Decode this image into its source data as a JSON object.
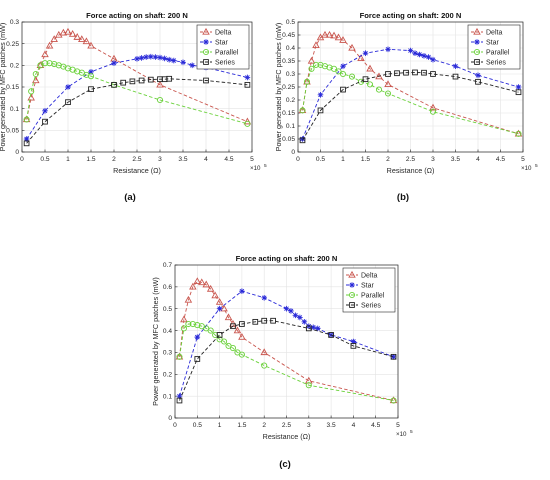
{
  "chart_data": [
    {
      "type": "line",
      "panel": "(a)",
      "title": "Force acting on shaft: 200 N",
      "xlabel": "Resistance (Ω)",
      "ylabel": "Power generated by MFC patches (mW)",
      "x_exponent": "×10",
      "x_exponent_power": "5",
      "xlim": [
        0,
        5
      ],
      "ylim": [
        0,
        0.3
      ],
      "xticks": [
        "0",
        "0.5",
        "1",
        "1.5",
        "2",
        "2.5",
        "3",
        "3.5",
        "4",
        "4.5",
        "5"
      ],
      "yticks": [
        "0",
        "0.05",
        "0.1",
        "0.15",
        "0.2",
        "0.25",
        "0.3"
      ],
      "grid": true,
      "legend_position": "top-right",
      "series": [
        {
          "name": "Delta",
          "x": [
            0.1,
            0.2,
            0.3,
            0.4,
            0.5,
            0.6,
            0.7,
            0.8,
            0.9,
            1.0,
            1.1,
            1.2,
            1.3,
            1.4,
            1.5,
            2.0,
            3.0,
            4.9
          ],
          "values": [
            0.075,
            0.125,
            0.165,
            0.2,
            0.225,
            0.245,
            0.26,
            0.27,
            0.275,
            0.277,
            0.272,
            0.265,
            0.26,
            0.255,
            0.245,
            0.215,
            0.155,
            0.07
          ]
        },
        {
          "name": "Star",
          "x": [
            0.1,
            0.5,
            1.0,
            1.5,
            2.0,
            2.5,
            2.6,
            2.7,
            2.8,
            2.9,
            3.0,
            3.1,
            3.2,
            3.3,
            3.5,
            3.7,
            4.0,
            4.9
          ],
          "values": [
            0.03,
            0.095,
            0.15,
            0.185,
            0.205,
            0.215,
            0.217,
            0.219,
            0.22,
            0.219,
            0.218,
            0.216,
            0.213,
            0.211,
            0.207,
            0.2,
            0.195,
            0.172
          ]
        },
        {
          "name": "Parallel",
          "x": [
            0.1,
            0.2,
            0.3,
            0.4,
            0.5,
            0.6,
            0.7,
            0.8,
            0.9,
            1.0,
            1.1,
            1.2,
            1.3,
            1.4,
            1.5,
            2.0,
            3.0,
            4.9
          ],
          "values": [
            0.075,
            0.14,
            0.18,
            0.2,
            0.205,
            0.205,
            0.203,
            0.2,
            0.197,
            0.193,
            0.19,
            0.186,
            0.183,
            0.178,
            0.175,
            0.155,
            0.12,
            0.065
          ]
        },
        {
          "name": "Series",
          "x": [
            0.1,
            0.5,
            1.0,
            1.5,
            2.0,
            2.2,
            2.4,
            2.6,
            2.8,
            3.0,
            3.1,
            3.2,
            4.0,
            4.9
          ],
          "values": [
            0.02,
            0.07,
            0.115,
            0.145,
            0.155,
            0.16,
            0.163,
            0.165,
            0.167,
            0.168,
            0.168,
            0.169,
            0.165,
            0.155
          ]
        }
      ],
      "colors": {
        "Delta": "#c9564e",
        "Star": "#2a2ad8",
        "Parallel": "#6ad13a",
        "Series": "#222222"
      }
    },
    {
      "type": "line",
      "panel": "(b)",
      "title": "Force acting on shaft: 200 N",
      "xlabel": "Resistance (Ω)",
      "ylabel": "Power generated by MFC patches (mW)",
      "x_exponent": "×10",
      "x_exponent_power": "5",
      "xlim": [
        0,
        5
      ],
      "ylim": [
        0,
        0.5
      ],
      "xticks": [
        "0",
        "0.5",
        "1",
        "1.5",
        "2",
        "2.5",
        "3",
        "3.5",
        "4",
        "4.5",
        "5"
      ],
      "yticks": [
        "0",
        "0.05",
        "0.1",
        "0.15",
        "0.2",
        "0.25",
        "0.3",
        "0.35",
        "0.4",
        "0.45",
        "0.5"
      ],
      "grid": true,
      "legend_position": "top-right",
      "series": [
        {
          "name": "Delta",
          "x": [
            0.1,
            0.2,
            0.3,
            0.4,
            0.5,
            0.6,
            0.7,
            0.8,
            0.9,
            1.0,
            1.2,
            1.4,
            1.6,
            1.8,
            2.0,
            3.0,
            4.9
          ],
          "values": [
            0.16,
            0.27,
            0.35,
            0.41,
            0.44,
            0.45,
            0.45,
            0.447,
            0.44,
            0.43,
            0.4,
            0.36,
            0.32,
            0.29,
            0.26,
            0.17,
            0.07
          ]
        },
        {
          "name": "Star",
          "x": [
            0.1,
            0.5,
            1.0,
            1.5,
            2.0,
            2.5,
            2.6,
            2.7,
            2.8,
            2.9,
            3.0,
            3.5,
            4.0,
            4.9
          ],
          "values": [
            0.05,
            0.22,
            0.33,
            0.38,
            0.395,
            0.39,
            0.38,
            0.375,
            0.37,
            0.365,
            0.355,
            0.33,
            0.295,
            0.25
          ]
        },
        {
          "name": "Parallel",
          "x": [
            0.1,
            0.2,
            0.3,
            0.4,
            0.5,
            0.6,
            0.7,
            0.8,
            0.9,
            1.0,
            1.2,
            1.4,
            1.6,
            1.8,
            2.0,
            3.0,
            4.9
          ],
          "values": [
            0.16,
            0.27,
            0.32,
            0.335,
            0.335,
            0.33,
            0.325,
            0.32,
            0.31,
            0.3,
            0.29,
            0.27,
            0.26,
            0.24,
            0.225,
            0.155,
            0.07
          ]
        },
        {
          "name": "Series",
          "x": [
            0.1,
            0.5,
            1.0,
            1.5,
            2.0,
            2.2,
            2.4,
            2.6,
            2.8,
            3.0,
            3.5,
            4.0,
            4.9
          ],
          "values": [
            0.045,
            0.16,
            0.24,
            0.28,
            0.3,
            0.303,
            0.305,
            0.306,
            0.305,
            0.3,
            0.29,
            0.27,
            0.23
          ]
        }
      ],
      "colors": {
        "Delta": "#c9564e",
        "Star": "#2a2ad8",
        "Parallel": "#6ad13a",
        "Series": "#222222"
      }
    },
    {
      "type": "line",
      "panel": "(c)",
      "title": "Force acting on shaft: 200 N",
      "xlabel": "Resistance (Ω)",
      "ylabel": "Power generated by MFC patches (mW)",
      "x_exponent": "×10",
      "x_exponent_power": "5",
      "xlim": [
        0,
        5
      ],
      "ylim": [
        0,
        0.7
      ],
      "xticks": [
        "0",
        "0.5",
        "1",
        "1.5",
        "2",
        "2.5",
        "3",
        "3.5",
        "4",
        "4.5",
        "5"
      ],
      "yticks": [
        "0",
        "0.1",
        "0.2",
        "0.3",
        "0.4",
        "0.5",
        "0.6",
        "0.7"
      ],
      "grid": true,
      "legend_position": "top-right",
      "series": [
        {
          "name": "Delta",
          "x": [
            0.1,
            0.2,
            0.3,
            0.4,
            0.5,
            0.6,
            0.7,
            0.8,
            0.9,
            1.0,
            1.1,
            1.2,
            1.3,
            1.4,
            1.5,
            2.0,
            3.0,
            4.9
          ],
          "values": [
            0.28,
            0.45,
            0.54,
            0.6,
            0.625,
            0.62,
            0.61,
            0.59,
            0.56,
            0.53,
            0.5,
            0.46,
            0.43,
            0.4,
            0.37,
            0.3,
            0.17,
            0.08
          ]
        },
        {
          "name": "Star",
          "x": [
            0.1,
            0.5,
            1.0,
            1.5,
            2.0,
            2.5,
            2.6,
            2.7,
            2.8,
            2.9,
            3.0,
            3.1,
            3.2,
            3.5,
            4.0,
            4.9
          ],
          "values": [
            0.1,
            0.37,
            0.5,
            0.58,
            0.55,
            0.5,
            0.49,
            0.47,
            0.46,
            0.44,
            0.42,
            0.415,
            0.41,
            0.38,
            0.35,
            0.28
          ]
        },
        {
          "name": "Parallel",
          "x": [
            0.1,
            0.2,
            0.3,
            0.4,
            0.5,
            0.6,
            0.7,
            0.8,
            0.9,
            1.0,
            1.1,
            1.2,
            1.3,
            1.4,
            1.5,
            2.0,
            3.0,
            4.9
          ],
          "values": [
            0.28,
            0.41,
            0.43,
            0.43,
            0.425,
            0.42,
            0.41,
            0.4,
            0.38,
            0.36,
            0.35,
            0.33,
            0.32,
            0.3,
            0.29,
            0.24,
            0.15,
            0.08
          ]
        },
        {
          "name": "Series",
          "x": [
            0.1,
            0.5,
            1.0,
            1.3,
            1.5,
            1.8,
            2.0,
            2.2,
            3.0,
            3.5,
            4.0,
            4.9
          ],
          "values": [
            0.08,
            0.27,
            0.38,
            0.42,
            0.43,
            0.44,
            0.445,
            0.445,
            0.41,
            0.38,
            0.33,
            0.28
          ]
        }
      ],
      "colors": {
        "Delta": "#c9564e",
        "Star": "#2a2ad8",
        "Parallel": "#6ad13a",
        "Series": "#222222"
      }
    }
  ]
}
